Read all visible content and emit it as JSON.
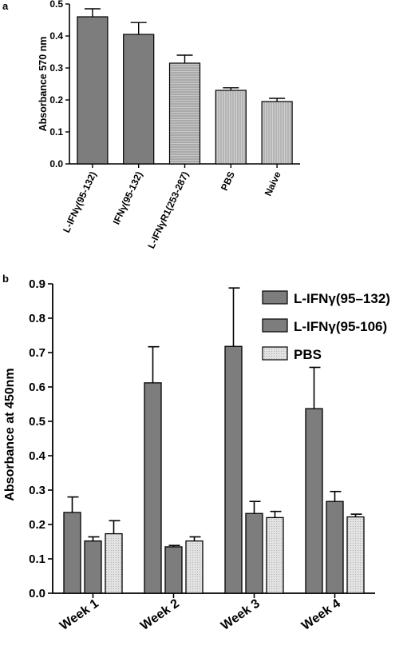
{
  "panels": [
    {
      "label": "a"
    },
    {
      "label": "b"
    }
  ],
  "chart_data": [
    {
      "type": "bar",
      "title": "",
      "xlabel": "",
      "ylabel": "Absorbance 570 nm",
      "ylim": [
        0.0,
        0.5
      ],
      "yticks": [
        "0.0",
        "0.1",
        "0.2",
        "0.3",
        "0.4",
        "0.5"
      ],
      "categories": [
        "L-IFNγ(95-132)",
        "IFNγ(95-132)",
        "L-IFNγR1(253-287)",
        "PBS",
        "Naive"
      ],
      "values": [
        0.46,
        0.405,
        0.315,
        0.23,
        0.195
      ],
      "errors": [
        0.025,
        0.037,
        0.025,
        0.008,
        0.01
      ],
      "fill_colors": [
        "#7d7d7d",
        "#7d7d7d",
        "#bdbdbd",
        "#c4c4c4",
        "#cfcfcf"
      ],
      "grid": false
    },
    {
      "type": "bar",
      "title": "",
      "xlabel": "",
      "ylabel": "Absorbance at 450nm",
      "ylim": [
        0.0,
        0.9
      ],
      "yticks": [
        "0.0",
        "0.1",
        "0.2",
        "0.3",
        "0.4",
        "0.5",
        "0.6",
        "0.7",
        "0.8",
        "0.9"
      ],
      "categories": [
        "Week 1",
        "Week 2",
        "Week 3",
        "Week 4"
      ],
      "series": [
        {
          "name": "L-IFNγ(95–132)",
          "values": [
            0.235,
            0.612,
            0.718,
            0.537
          ],
          "errors": [
            0.045,
            0.105,
            0.17,
            0.12
          ],
          "color": "#7d7d7d"
        },
        {
          "name": "L-IFNγ(95-106)",
          "values": [
            0.152,
            0.135,
            0.232,
            0.267
          ],
          "errors": [
            0.012,
            0.004,
            0.035,
            0.029
          ],
          "color": "#7d7d7d"
        },
        {
          "name": "PBS",
          "values": [
            0.173,
            0.152,
            0.22,
            0.222
          ],
          "errors": [
            0.038,
            0.012,
            0.018,
            0.008
          ],
          "color": "#d9d9d9"
        }
      ],
      "legend_position": "top-right",
      "grid": false
    }
  ]
}
